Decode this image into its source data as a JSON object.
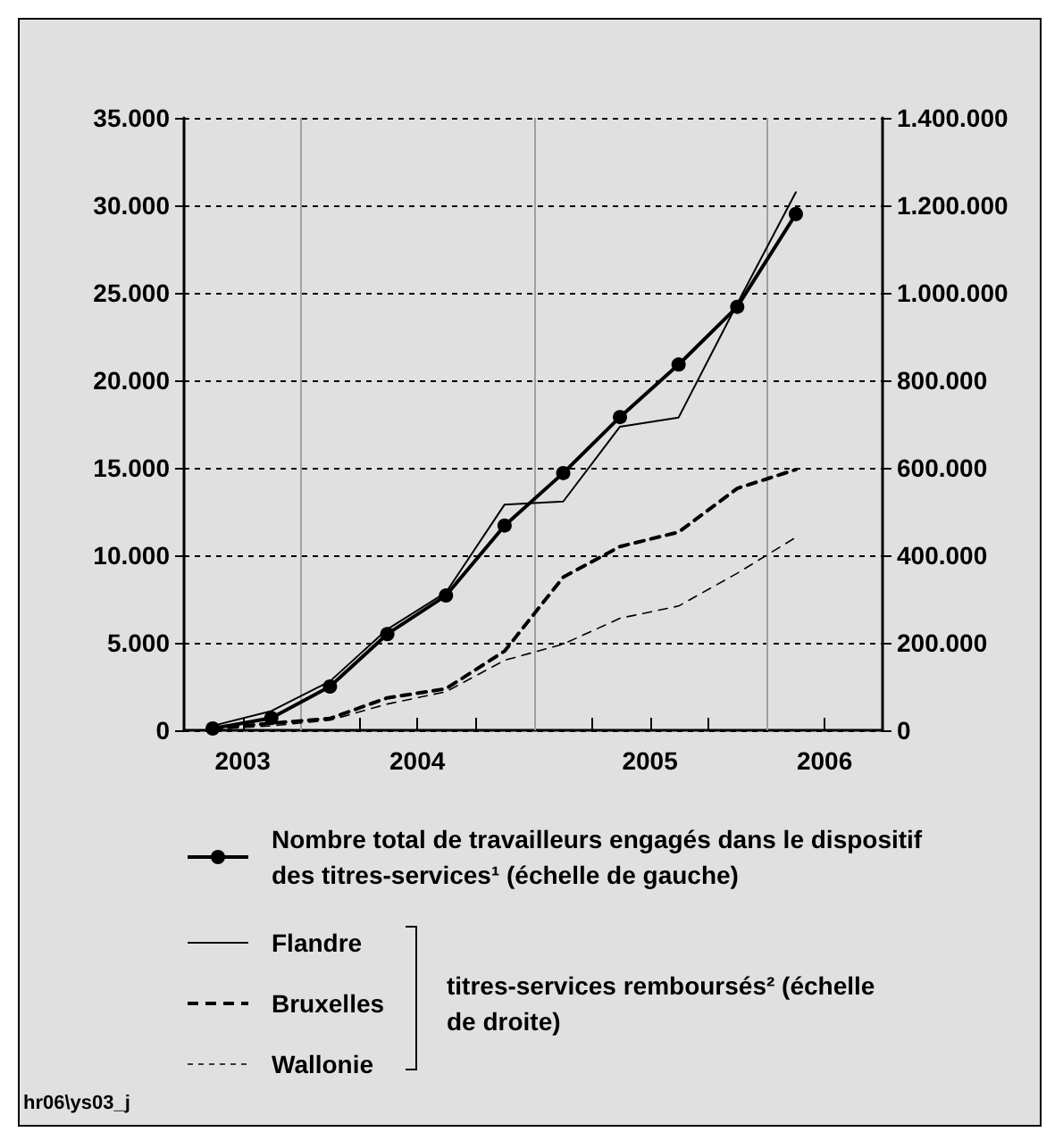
{
  "chart_data": {
    "type": "line",
    "x": [
      "2003-08-15",
      "2003-11-15",
      "2004-02-15",
      "2004-05-15",
      "2004-08-15",
      "2004-11-15",
      "2005-02-15",
      "2005-05-15",
      "2005-08-15",
      "2005-11-15",
      "2006-02-15"
    ],
    "series": [
      {
        "name": "Nombre total de travailleurs engagés dans le dispositif des titres-services¹ (échelle de gauche)",
        "color": "#000000",
        "marker": "circle",
        "line_style": "solid",
        "values": [
          100,
          700,
          2500,
          5500,
          7700,
          11700,
          14700,
          17900,
          20900,
          24200,
          29500
        ]
      },
      {
        "name": "Flandre",
        "color": "#000000",
        "axis": "y2",
        "marker": "none",
        "line_style": "solid",
        "values": [
          10000,
          44000,
          112000,
          231000,
          315000,
          516000,
          523000,
          694000,
          715000,
          975000,
          1230000
        ]
      },
      {
        "name": "Bruxelles",
        "color": "#000000",
        "axis": "y2",
        "marker": "none",
        "line_style": "dashed",
        "values": [
          3000,
          16000,
          27000,
          74000,
          95000,
          181000,
          350000,
          420000,
          453000,
          553000,
          596000
        ]
      },
      {
        "name": "Wallonie",
        "color": "#000000",
        "axis": "y2",
        "marker": "none",
        "line_style": "dashed",
        "values": [
          3000,
          10000,
          23000,
          60000,
          88000,
          160000,
          197000,
          256000,
          284000,
          359000,
          441000
        ]
      }
    ],
    "xlim": [
      "2003-07-01",
      "2006-07-01"
    ],
    "xticks": [
      {
        "value": "2003-10-01",
        "label": "2003"
      },
      {
        "value": "2004-01-01",
        "label": null
      },
      {
        "value": "2004-04-01",
        "label": null
      },
      {
        "value": "2004-07-01",
        "label": "2004"
      },
      {
        "value": "2004-10-01",
        "label": null
      },
      {
        "value": "2005-01-01",
        "label": null
      },
      {
        "value": "2005-04-01",
        "label": null
      },
      {
        "value": "2005-07-01",
        "label": "2005"
      },
      {
        "value": "2005-10-01",
        "label": null
      },
      {
        "value": "2006-01-01",
        "label": null
      },
      {
        "value": "2006-04-01",
        "label": "2006"
      }
    ],
    "ylim": [
      0,
      35000
    ],
    "yticks": [
      0,
      {
        "value": 5000,
        "label": "5.000"
      },
      {
        "value": 10000,
        "label": "10.000"
      },
      {
        "value": 15000,
        "label": "15.000"
      },
      {
        "value": 20000,
        "label": "20.000"
      },
      {
        "value": 25000,
        "label": "25.000"
      },
      {
        "value": 30000,
        "label": "30.000"
      },
      {
        "value": 35000,
        "label": "35.000"
      }
    ],
    "y2lim": [
      0,
      1400000
    ],
    "y2ticks": [
      0,
      {
        "value": 200000,
        "label": "200.000"
      },
      {
        "value": 400000,
        "label": "400.000"
      },
      {
        "value": 600000,
        "label": "600.000"
      },
      {
        "value": 800000,
        "label": "800.000"
      },
      {
        "value": 1000000,
        "label": "1.000.000"
      },
      {
        "value": 1200000,
        "label": "1.200.000"
      },
      {
        "value": 1400000,
        "label": "1.400.000"
      }
    ],
    "ref_lines": [
      {
        "axis": "x",
        "value": "2004-01-01",
        "color": "#a0a0a0"
      },
      {
        "axis": "x",
        "value": "2005-01-01",
        "color": "#a0a0a0"
      },
      {
        "axis": "x",
        "value": "2006-01-01",
        "color": "#a0a0a0"
      }
    ],
    "grid": "y",
    "legend": "bottom",
    "legend_title": "titres-services remboursés² (échelle de droite)",
    "annotations": [
      "hr06\\ys03_j"
    ]
  }
}
